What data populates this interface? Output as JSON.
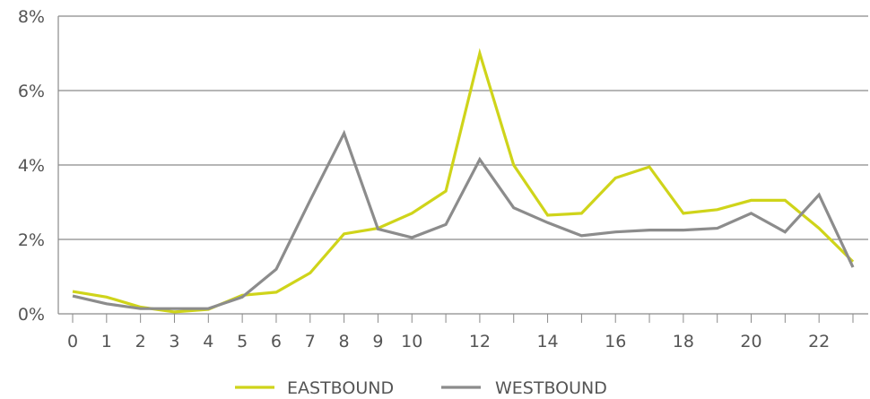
{
  "chart_data": {
    "type": "line",
    "x": [
      0,
      1,
      2,
      3,
      4,
      5,
      6,
      7,
      8,
      9,
      10,
      11,
      12,
      13,
      14,
      15,
      16,
      17,
      18,
      19,
      20,
      21,
      22,
      23
    ],
    "series": [
      {
        "name": "EASTBOUND",
        "color": "#cfd41a",
        "values": [
          0.6,
          0.45,
          0.18,
          0.05,
          0.12,
          0.5,
          0.58,
          1.1,
          2.15,
          2.3,
          2.7,
          3.3,
          7.0,
          4.0,
          2.65,
          2.7,
          3.65,
          3.95,
          2.7,
          2.8,
          3.05,
          3.05,
          2.3,
          1.4
        ]
      },
      {
        "name": "WESTBOUND",
        "color": "#8c8c8c",
        "values": [
          0.48,
          0.27,
          0.14,
          0.14,
          0.14,
          0.45,
          1.2,
          3.05,
          4.85,
          2.28,
          2.05,
          2.4,
          4.15,
          2.85,
          2.45,
          2.1,
          2.2,
          2.25,
          2.25,
          2.3,
          2.7,
          2.2,
          3.2,
          1.25
        ]
      }
    ],
    "y_ticks": [
      {
        "value": 0,
        "label": "0%"
      },
      {
        "value": 2,
        "label": "2%"
      },
      {
        "value": 4,
        "label": "4%"
      },
      {
        "value": 6,
        "label": "6%"
      },
      {
        "value": 8,
        "label": "8%"
      }
    ],
    "x_tick_labels": [
      {
        "value": 0,
        "label": "0"
      },
      {
        "value": 1,
        "label": "1"
      },
      {
        "value": 2,
        "label": "2"
      },
      {
        "value": 3,
        "label": "3"
      },
      {
        "value": 4,
        "label": "4"
      },
      {
        "value": 5,
        "label": "5"
      },
      {
        "value": 6,
        "label": "6"
      },
      {
        "value": 7,
        "label": "7"
      },
      {
        "value": 8,
        "label": "8"
      },
      {
        "value": 9,
        "label": "9"
      },
      {
        "value": 10,
        "label": "10"
      },
      {
        "value": 12,
        "label": "12"
      },
      {
        "value": 14,
        "label": "14"
      },
      {
        "value": 16,
        "label": "16"
      },
      {
        "value": 18,
        "label": "18"
      },
      {
        "value": 20,
        "label": "20"
      },
      {
        "value": 22,
        "label": "22"
      }
    ],
    "ylim": [
      0,
      8
    ],
    "xlim": [
      0,
      23
    ],
    "grid": true,
    "legend": "bottom",
    "title": "",
    "xlabel": "",
    "ylabel": ""
  }
}
